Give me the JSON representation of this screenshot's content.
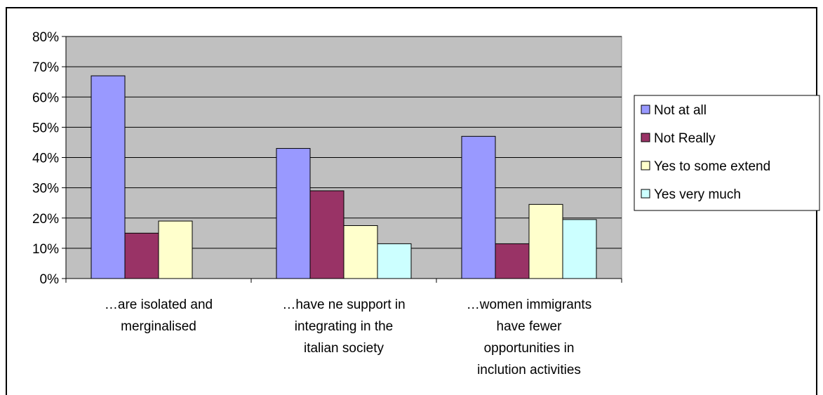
{
  "chart_data": {
    "type": "bar",
    "categories": [
      [
        "…are isolated and",
        "merginalised"
      ],
      [
        "…have ne support in",
        "integrating in the",
        "italian society"
      ],
      [
        "…women immigrants",
        "have fewer",
        "opportunities in",
        "inclution activities"
      ]
    ],
    "series": [
      {
        "name": "Not at all",
        "color": "#9999ff",
        "values": [
          67,
          43,
          47
        ]
      },
      {
        "name": "Not Really",
        "color": "#993366",
        "values": [
          15,
          29,
          11.5
        ]
      },
      {
        "name": "Yes to some extend",
        "color": "#ffffcc",
        "values": [
          19,
          17.5,
          24.5
        ]
      },
      {
        "name": "Yes very much",
        "color": "#ccffff",
        "values": [
          null,
          11.5,
          19.5
        ]
      }
    ],
    "ylim": [
      0,
      80
    ],
    "yticks": [
      0,
      10,
      20,
      30,
      40,
      50,
      60,
      70,
      80
    ],
    "ytick_labels": [
      "0%",
      "10%",
      "20%",
      "30%",
      "40%",
      "50%",
      "60%",
      "70%",
      "80%"
    ],
    "plot_background": "#c0c0c0",
    "grid": true,
    "legend_position": "right"
  }
}
